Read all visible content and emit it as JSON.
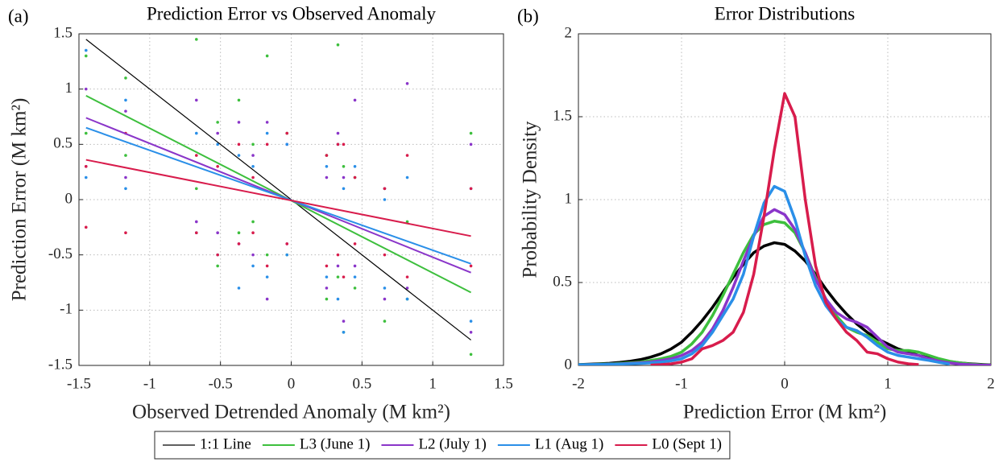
{
  "chart_data": [
    {
      "type": "scatter",
      "panel_label": "(a)",
      "title": "Prediction Error vs Observed Anomaly",
      "xlabel": "Observed Detrended Anomaly (M km²)",
      "ylabel": "Prediction Error (M km²)",
      "xlim": [
        -1.5,
        1.5
      ],
      "xticks": [
        -1.5,
        -1,
        -0.5,
        0,
        0.5,
        1,
        1.5
      ],
      "ylim": [
        -1.5,
        1.5
      ],
      "yticks": [
        -1.5,
        -1,
        -0.5,
        0,
        0.5,
        1,
        1.5
      ],
      "grid": true,
      "legend": "below",
      "series": [
        {
          "name": "1:1 Line",
          "color": "#000000",
          "fit": {
            "x": [
              -1.45,
              1.27
            ],
            "values": [
              1.45,
              -1.27
            ]
          }
        },
        {
          "name": "L3 (June 1)",
          "color": "#3dbf3d",
          "x": [
            -1.45,
            -1.45,
            -1.17,
            -1.17,
            -0.67,
            -0.67,
            -0.52,
            -0.52,
            -0.37,
            -0.37,
            -0.27,
            -0.27,
            -0.17,
            -0.17,
            -0.03,
            -0.03,
            0.25,
            0.25,
            0.33,
            0.33,
            0.37,
            0.37,
            0.45,
            0.45,
            0.66,
            0.66,
            0.82,
            0.82,
            1.27,
            1.27
          ],
          "values": [
            1.3,
            0.6,
            1.1,
            0.4,
            1.45,
            0.1,
            0.7,
            -0.6,
            0.9,
            -0.3,
            0.5,
            -0.2,
            1.3,
            -0.5,
            0.6,
            -0.5,
            0.4,
            -0.9,
            1.4,
            -0.7,
            0.3,
            -1.2,
            0.2,
            -0.8,
            0.1,
            -1.1,
            -0.2,
            -0.9,
            0.6,
            -1.4
          ],
          "fit": {
            "x": [
              -1.45,
              1.27
            ],
            "values": [
              0.94,
              -0.84
            ]
          }
        },
        {
          "name": "L2 (July 1)",
          "color": "#8a35c9",
          "x": [
            -1.45,
            -1.45,
            -1.17,
            -1.17,
            -0.67,
            -0.67,
            -0.52,
            -0.52,
            -0.37,
            -0.37,
            -0.27,
            -0.27,
            -0.17,
            -0.17,
            -0.03,
            -0.03,
            0.25,
            0.25,
            0.33,
            0.33,
            0.37,
            0.37,
            0.45,
            0.45,
            0.66,
            0.66,
            0.82,
            0.82,
            1.27,
            1.27
          ],
          "values": [
            1.0,
            0.3,
            0.8,
            0.2,
            0.9,
            -0.2,
            0.6,
            -0.3,
            0.7,
            -0.4,
            0.4,
            -0.5,
            0.7,
            -0.9,
            0.5,
            -0.4,
            0.2,
            -0.8,
            0.6,
            -0.6,
            0.2,
            -1.1,
            0.9,
            -0.6,
            0.1,
            -0.9,
            1.05,
            -0.8,
            0.5,
            -1.2
          ],
          "fit": {
            "x": [
              -1.45,
              1.27
            ],
            "values": [
              0.74,
              -0.66
            ]
          }
        },
        {
          "name": "L1 (Aug 1)",
          "color": "#2a8fe8",
          "x": [
            -1.45,
            -1.45,
            -1.17,
            -1.17,
            -0.67,
            -0.67,
            -0.52,
            -0.52,
            -0.37,
            -0.37,
            -0.27,
            -0.27,
            -0.17,
            -0.17,
            -0.03,
            -0.03,
            0.25,
            0.25,
            0.33,
            0.33,
            0.37,
            0.37,
            0.45,
            0.45,
            0.66,
            0.66,
            0.82,
            0.82,
            1.27,
            1.27
          ],
          "values": [
            1.35,
            0.2,
            0.9,
            0.1,
            0.6,
            -0.3,
            0.5,
            -0.5,
            0.4,
            -0.8,
            0.3,
            -0.6,
            0.6,
            -0.7,
            0.5,
            -0.5,
            0.3,
            -0.7,
            0.5,
            -0.9,
            0.1,
            -1.2,
            0.3,
            -0.7,
            0.0,
            -0.8,
            0.2,
            -0.9,
            0.1,
            -1.1
          ],
          "fit": {
            "x": [
              -1.45,
              1.27
            ],
            "values": [
              0.65,
              -0.58
            ]
          }
        },
        {
          "name": "L0 (Sept 1)",
          "color": "#d81c4c",
          "x": [
            -1.45,
            -1.45,
            -1.17,
            -1.17,
            -0.67,
            -0.67,
            -0.52,
            -0.52,
            -0.37,
            -0.37,
            -0.27,
            -0.27,
            -0.17,
            -0.17,
            -0.03,
            -0.03,
            0.25,
            0.25,
            0.33,
            0.33,
            0.37,
            0.37,
            0.45,
            0.45,
            0.66,
            0.66,
            0.82,
            0.82,
            1.27,
            1.27
          ],
          "values": [
            0.3,
            -0.25,
            0.6,
            -0.3,
            0.4,
            -0.3,
            0.3,
            -0.5,
            0.5,
            -0.4,
            0.2,
            -0.3,
            0.5,
            -0.6,
            0.6,
            -0.4,
            0.4,
            -0.6,
            0.5,
            -0.5,
            0.5,
            -0.7,
            0.2,
            -0.4,
            0.1,
            -0.5,
            0.4,
            -0.7,
            0.1,
            -0.6
          ],
          "fit": {
            "x": [
              -1.45,
              1.27
            ],
            "values": [
              0.36,
              -0.33
            ]
          }
        }
      ]
    },
    {
      "type": "line",
      "panel_label": "(b)",
      "title": "Error Distributions",
      "xlabel": "Prediction Error (M km²)",
      "ylabel": "Probability Density",
      "xlim": [
        -2,
        2
      ],
      "xticks": [
        -2,
        -1,
        0,
        1,
        2
      ],
      "ylim": [
        0,
        2
      ],
      "yticks": [
        0,
        0.5,
        1,
        1.5,
        2
      ],
      "grid": true,
      "x": [
        -2,
        -1.9,
        -1.8,
        -1.7,
        -1.6,
        -1.5,
        -1.4,
        -1.3,
        -1.2,
        -1.1,
        -1,
        -0.9,
        -0.8,
        -0.7,
        -0.6,
        -0.5,
        -0.4,
        -0.3,
        -0.2,
        -0.1,
        0,
        0.1,
        0.2,
        0.3,
        0.4,
        0.5,
        0.6,
        0.7,
        0.8,
        0.9,
        1,
        1.1,
        1.2,
        1.3,
        1.4,
        1.5,
        1.6,
        1.7,
        1.8,
        1.9,
        2
      ],
      "series": [
        {
          "color": "#000000",
          "values": [
            0.005,
            0.007,
            0.01,
            0.013,
            0.018,
            0.025,
            0.035,
            0.05,
            0.07,
            0.1,
            0.14,
            0.2,
            0.27,
            0.35,
            0.44,
            0.53,
            0.61,
            0.68,
            0.72,
            0.74,
            0.73,
            0.69,
            0.63,
            0.55,
            0.46,
            0.38,
            0.31,
            0.25,
            0.2,
            0.16,
            0.13,
            0.1,
            0.08,
            0.06,
            0.045,
            0.033,
            0.023,
            0.015,
            0.01,
            0.006,
            0.003
          ]
        },
        {
          "color": "#3dbf3d",
          "values": [
            0.004,
            0.005,
            0.007,
            0.009,
            0.012,
            0.016,
            0.02,
            0.03,
            0.04,
            0.055,
            0.08,
            0.13,
            0.2,
            0.3,
            0.42,
            0.55,
            0.68,
            0.79,
            0.85,
            0.87,
            0.86,
            0.8,
            0.68,
            0.53,
            0.4,
            0.3,
            0.23,
            0.2,
            0.18,
            0.14,
            0.1,
            0.09,
            0.09,
            0.08,
            0.06,
            0.04,
            0.025,
            0.015,
            0.008,
            0.004,
            0.002
          ]
        },
        {
          "color": "#8a35c9",
          "values": [
            0.003,
            0.004,
            0.005,
            0.007,
            0.009,
            0.012,
            0.016,
            0.02,
            0.03,
            0.04,
            0.06,
            0.09,
            0.14,
            0.22,
            0.33,
            0.47,
            0.63,
            0.78,
            0.9,
            0.94,
            0.91,
            0.82,
            0.68,
            0.52,
            0.4,
            0.32,
            0.28,
            0.26,
            0.23,
            0.17,
            0.11,
            0.08,
            0.07,
            0.06,
            0.04,
            0.025,
            0.015,
            0.008,
            0.004,
            0.002,
            0.001
          ]
        },
        {
          "color": "#2a8fe8",
          "values": [
            0.004,
            0.005,
            0.006,
            0.007,
            0.008,
            0.01,
            0.012,
            0.015,
            0.02,
            0.028,
            0.04,
            0.07,
            0.12,
            0.2,
            0.3,
            0.4,
            0.55,
            0.78,
            0.98,
            1.08,
            1.05,
            0.88,
            0.66,
            0.48,
            0.36,
            0.28,
            0.23,
            0.21,
            0.17,
            0.12,
            0.08,
            0.06,
            0.05,
            0.04,
            0.03,
            0.018,
            0.008,
            null,
            null,
            null,
            null
          ]
        },
        {
          "color": "#d81c4c",
          "values": [
            null,
            null,
            null,
            null,
            null,
            null,
            null,
            0.002,
            0.005,
            0.01,
            0.02,
            0.04,
            0.1,
            0.12,
            0.15,
            0.2,
            0.32,
            0.55,
            0.9,
            1.3,
            1.64,
            1.5,
            1.0,
            0.6,
            0.38,
            0.28,
            0.2,
            0.15,
            0.08,
            0.07,
            0.04,
            0.02,
            0.01,
            0.005,
            null,
            null,
            null,
            null,
            null,
            null,
            null
          ]
        }
      ]
    }
  ]
}
